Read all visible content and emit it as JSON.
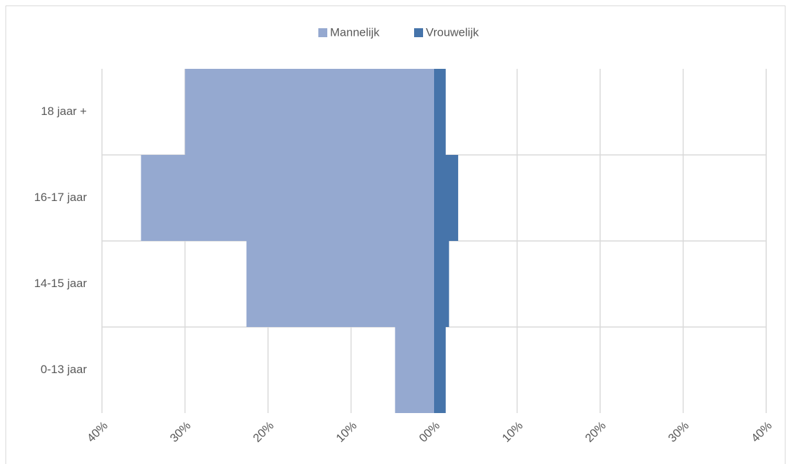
{
  "chart_data": {
    "type": "bar",
    "orientation": "horizontal",
    "stacked": true,
    "categories": [
      "0-13 jaar",
      "14-15 jaar",
      "16-17 jaar",
      "18 jaar +"
    ],
    "series": [
      {
        "name": "Mannelijk",
        "color": "#95a9d0",
        "values": [
          -4.7,
          -22.6,
          -35.3,
          -30.0
        ]
      },
      {
        "name": "Vrouwelijk",
        "color": "#4674aa",
        "values": [
          1.4,
          1.8,
          2.9,
          1.4
        ]
      }
    ],
    "xlim": [
      -40,
      40
    ],
    "xticks": [
      {
        "value": -40,
        "label": "40%"
      },
      {
        "value": -30,
        "label": "30%"
      },
      {
        "value": -20,
        "label": "20%"
      },
      {
        "value": -10,
        "label": "10%"
      },
      {
        "value": 0,
        "label": "00%"
      },
      {
        "value": 10,
        "label": "10%"
      },
      {
        "value": 20,
        "label": "20%"
      },
      {
        "value": 30,
        "label": "30%"
      },
      {
        "value": 40,
        "label": "40%"
      }
    ],
    "grid": true,
    "legend": "top"
  }
}
